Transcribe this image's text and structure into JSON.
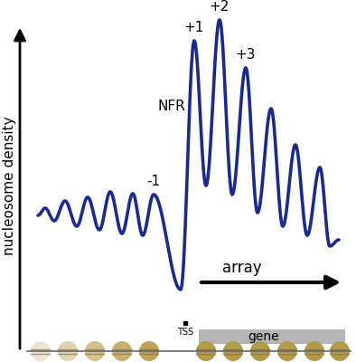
{
  "chart_data": {
    "type": "line",
    "y_label": "nucleosome density",
    "x": [
      42,
      50,
      60,
      72,
      85,
      97,
      110,
      122,
      135,
      147,
      158,
      170,
      200,
      215,
      228,
      243,
      257,
      272,
      285,
      300,
      313,
      327,
      340,
      354,
      365,
      375
    ],
    "values": [
      162,
      170,
      156,
      178,
      150,
      182,
      146,
      188,
      142,
      186,
      140,
      185,
      80,
      355,
      195,
      378,
      185,
      325,
      165,
      280,
      150,
      240,
      140,
      215,
      128,
      135
    ],
    "color": "#1b2a8f",
    "xlim": [
      40,
      380
    ],
    "ylim": [
      0,
      400
    ],
    "tick_labels": false,
    "peak_labels": [
      {
        "text": "-1",
        "x": 170
      },
      {
        "text": "+1",
        "x": 215
      },
      {
        "text": "+2",
        "x": 243
      },
      {
        "text": "+3",
        "x": 272
      }
    ],
    "annotations": {
      "nfr": "NFR",
      "array": "array",
      "tss": "TSS",
      "gene": "gene"
    }
  }
}
